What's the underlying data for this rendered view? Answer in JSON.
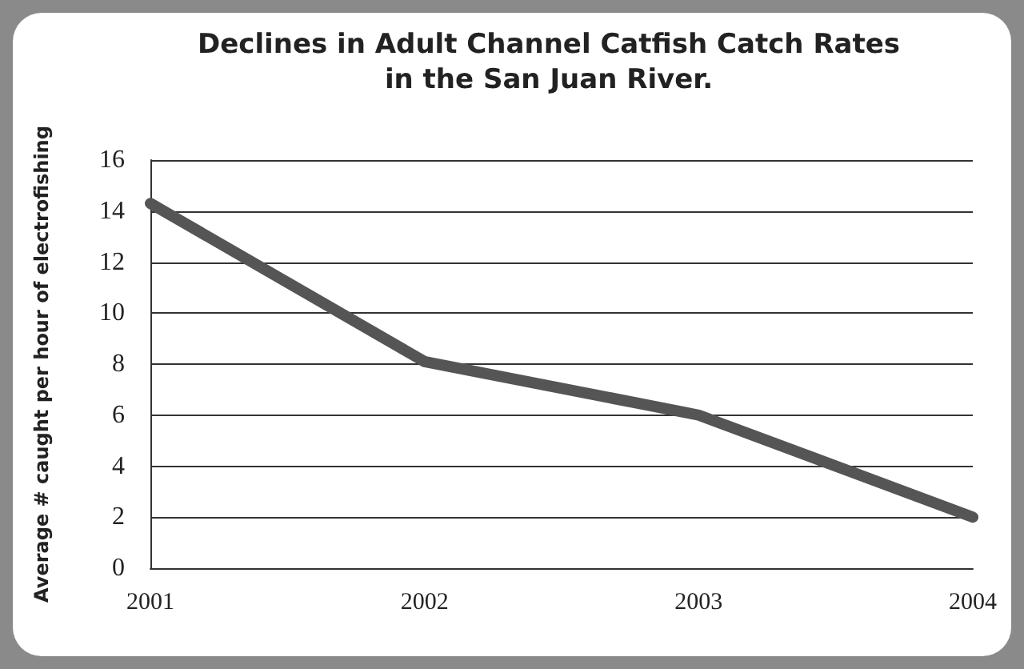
{
  "chart_data": {
    "type": "line",
    "title": "Declines in Adult Channel Catfish Catch Rates\nin the San Juan River.",
    "ylabel": "Average # caught per hour of electrofishing",
    "categories": [
      "2001",
      "2002",
      "2003",
      "2004"
    ],
    "series": [
      {
        "color": "#555555",
        "values": [
          14.3,
          8.1,
          6.0,
          2.0
        ]
      }
    ],
    "ylim": [
      0,
      16
    ],
    "yticks": [
      0,
      2,
      4,
      6,
      8,
      10,
      12,
      14,
      16
    ],
    "grid": "y",
    "marker": "none",
    "line_style": "solid"
  }
}
